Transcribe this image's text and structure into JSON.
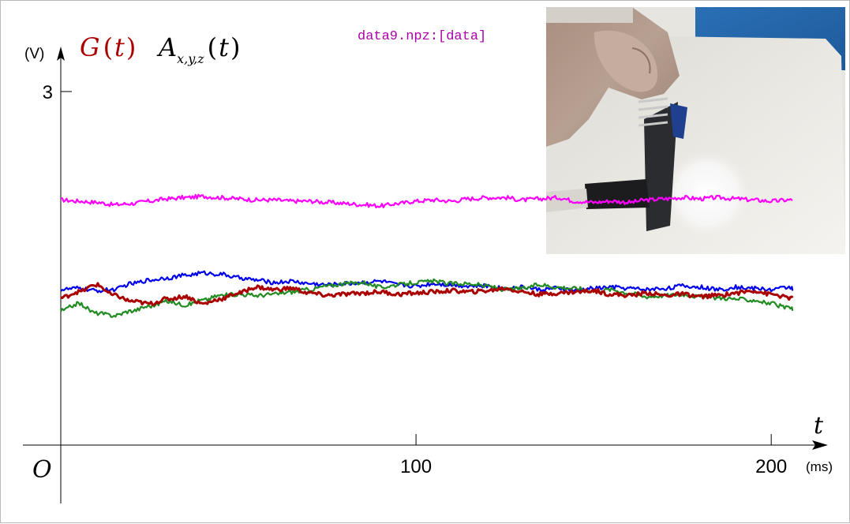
{
  "chart_data": {
    "type": "line",
    "file_label": "data9.npz:[data]",
    "y_unit": "(V)",
    "x_unit": "(ms)",
    "x_axis_symbol": "t",
    "origin_label": "O",
    "legend_g": "G",
    "legend_g_arg": "t",
    "legend_a": "A",
    "legend_a_sub": "x,y,z",
    "legend_a_arg": "t",
    "paren_open": "(",
    "paren_close": ")",
    "xlim": [
      0,
      206
    ],
    "ylim": [
      0,
      3
    ],
    "x_ticks": [
      {
        "value": 100,
        "label": "100"
      },
      {
        "value": 200,
        "label": "200"
      }
    ],
    "y_ticks": [
      {
        "value": 3,
        "label": "3"
      }
    ],
    "x_step": 5,
    "series": [
      {
        "color": "#ff00ff",
        "x_start": 0,
        "values": [
          2.08,
          2.07,
          2.06,
          2.04,
          2.05,
          2.07,
          2.09,
          2.1,
          2.11,
          2.1,
          2.09,
          2.08,
          2.08,
          2.07,
          2.07,
          2.06,
          2.05,
          2.04,
          2.03,
          2.05,
          2.07,
          2.08,
          2.07,
          2.09,
          2.1,
          2.1,
          2.08,
          2.09,
          2.1,
          2.07,
          2.06,
          2.07,
          2.06,
          2.08,
          2.09,
          2.1,
          2.09,
          2.1,
          2.09,
          2.08,
          2.07,
          2.08,
          2.06,
          2.07,
          2.08,
          2.07,
          2.08,
          2.05,
          2.07,
          2.08,
          2.07,
          2.08
        ]
      },
      {
        "color": "#0000ee",
        "x_start": 0,
        "values": [
          1.32,
          1.33,
          1.31,
          1.32,
          1.37,
          1.4,
          1.42,
          1.44,
          1.46,
          1.45,
          1.42,
          1.4,
          1.38,
          1.39,
          1.37,
          1.36,
          1.37,
          1.38,
          1.39,
          1.36,
          1.35,
          1.37,
          1.36,
          1.35,
          1.35,
          1.33,
          1.34,
          1.32,
          1.33,
          1.31,
          1.33,
          1.34,
          1.33,
          1.32,
          1.33,
          1.35,
          1.34,
          1.32,
          1.34,
          1.33,
          1.32,
          1.34,
          1.33,
          1.33,
          1.32,
          1.34,
          1.33,
          1.34,
          1.32,
          1.34,
          1.32,
          1.31
        ]
      },
      {
        "color": "#228b22",
        "x_start": 0,
        "values": [
          1.14,
          1.2,
          1.12,
          1.1,
          1.14,
          1.18,
          1.22,
          1.19,
          1.23,
          1.27,
          1.28,
          1.27,
          1.28,
          1.3,
          1.32,
          1.35,
          1.37,
          1.38,
          1.34,
          1.36,
          1.38,
          1.39,
          1.37,
          1.37,
          1.35,
          1.32,
          1.33,
          1.36,
          1.34,
          1.33,
          1.31,
          1.32,
          1.29,
          1.26,
          1.27,
          1.28,
          1.26,
          1.25,
          1.24,
          1.23,
          1.2,
          1.16,
          1.19,
          1.2,
          1.17,
          1.18,
          1.15,
          1.13,
          1.17,
          1.19,
          1.12,
          1.14
        ]
      },
      {
        "color": "#aa0000",
        "x_start": 0,
        "values": [
          1.25,
          1.3,
          1.36,
          1.27,
          1.22,
          1.2,
          1.24,
          1.26,
          1.2,
          1.24,
          1.29,
          1.34,
          1.32,
          1.33,
          1.29,
          1.27,
          1.28,
          1.29,
          1.3,
          1.28,
          1.29,
          1.3,
          1.31,
          1.3,
          1.31,
          1.33,
          1.3,
          1.28,
          1.29,
          1.3,
          1.31,
          1.28,
          1.27,
          1.29,
          1.27,
          1.28,
          1.26,
          1.27,
          1.29,
          1.31,
          1.28,
          1.25,
          1.22,
          1.2,
          1.22,
          1.24,
          1.23,
          1.19,
          1.24,
          1.28,
          1.36,
          1.25
        ]
      }
    ]
  }
}
